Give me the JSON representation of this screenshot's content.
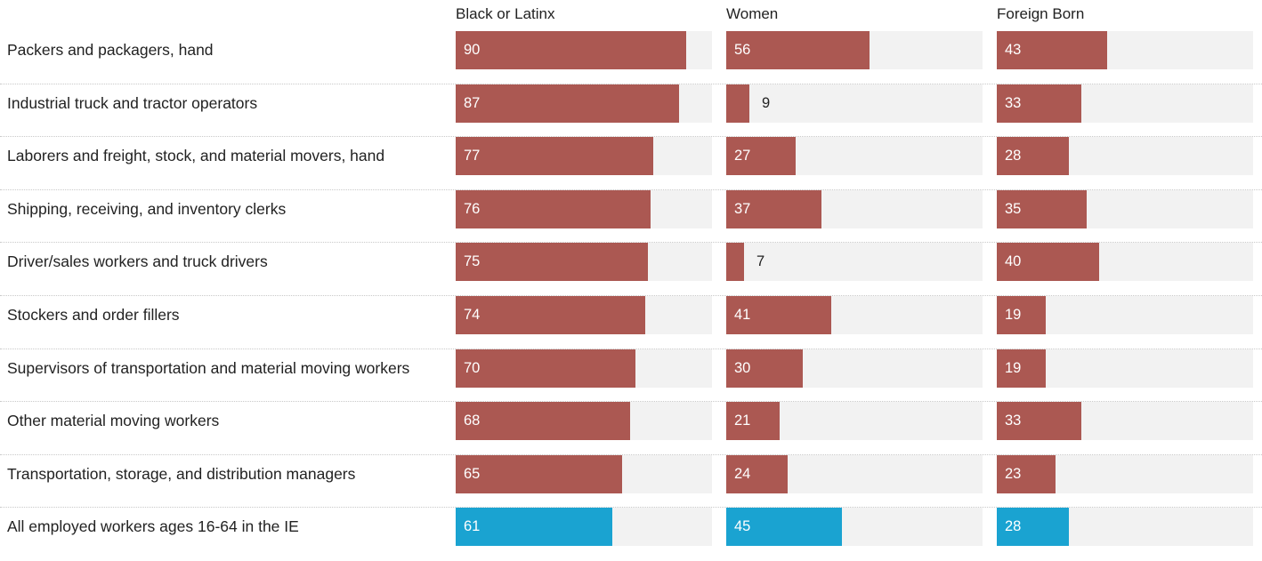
{
  "chart_data": {
    "type": "bar",
    "columns": [
      "Black or Latinx",
      "Women",
      "Foreign Born"
    ],
    "categories": [
      "Packers and packagers, hand",
      "Industrial truck and tractor operators",
      "Laborers and freight, stock, and material movers, hand",
      "Shipping, receiving, and inventory clerks",
      "Driver/sales workers and truck drivers",
      "Stockers and order fillers",
      "Supervisors of transportation and material moving workers",
      "Other material moving workers",
      "Transportation, storage, and distribution managers",
      "All employed workers ages 16-64 in the IE"
    ],
    "series": [
      {
        "name": "Black or Latinx",
        "values": [
          90,
          87,
          77,
          76,
          75,
          74,
          70,
          68,
          65,
          61
        ]
      },
      {
        "name": "Women",
        "values": [
          56,
          9,
          27,
          37,
          7,
          41,
          30,
          21,
          24,
          45
        ]
      },
      {
        "name": "Foreign Born",
        "values": [
          43,
          33,
          28,
          35,
          40,
          19,
          19,
          33,
          23,
          28
        ]
      }
    ],
    "xlim": [
      0,
      100
    ],
    "highlight_category": "All employed workers ages 16-64 in the IE",
    "colors": {
      "bar": "#ab5852",
      "highlight": "#1aa3d1",
      "track": "#f2f2f2"
    },
    "grid": false,
    "legend": "none"
  }
}
